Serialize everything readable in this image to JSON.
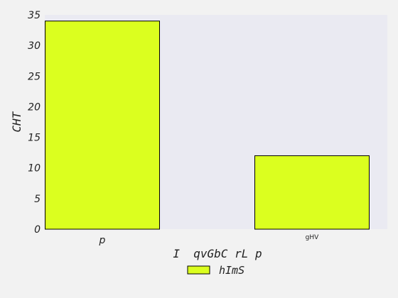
{
  "chart_data": {
    "type": "bar",
    "categories": [
      "p",
      "gHV"
    ],
    "series": [
      {
        "name": "hImS",
        "values": [
          34,
          12
        ],
        "color": "#dbff1f"
      }
    ],
    "title": "",
    "xlabel": "I  qvGbC rL p",
    "ylabel": "CHT",
    "ylim": [
      0,
      35
    ],
    "yticks": [
      0,
      5,
      10,
      15,
      20,
      25,
      30,
      35
    ],
    "grid": false,
    "legend_position": "bottom-center",
    "plot_background": "#eaeaf2",
    "bar_edge_color": "#000000"
  }
}
